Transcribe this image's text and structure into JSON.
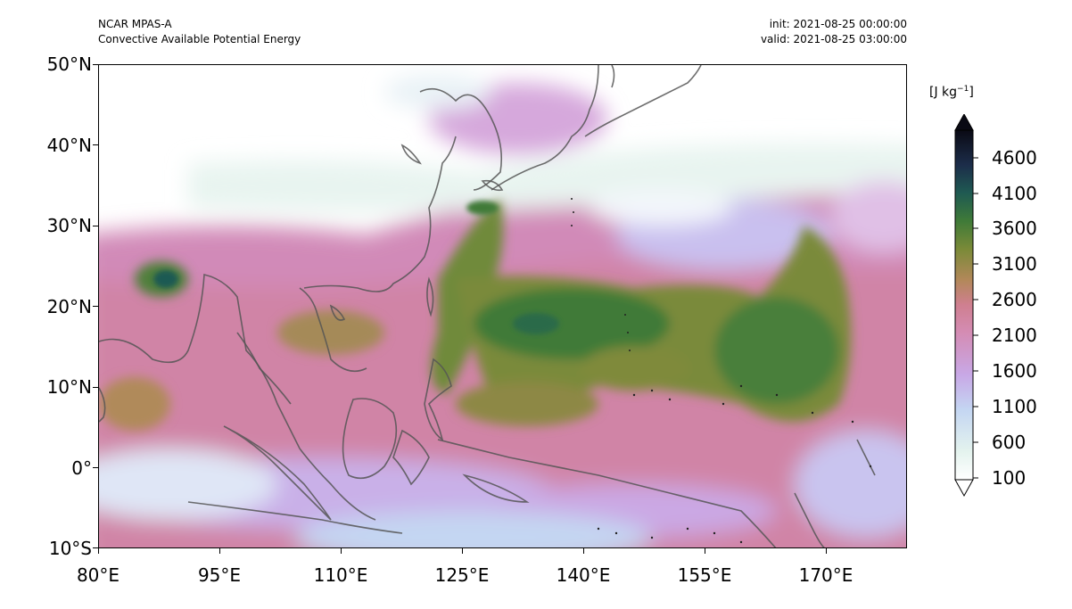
{
  "header": {
    "model": "NCAR MPAS-A",
    "field": "Convective Available Potential Energy",
    "init": "init: 2021-08-25 00:00:00",
    "valid": "valid: 2021-08-25 03:00:00"
  },
  "axes": {
    "lat_labels": [
      "50°N",
      "40°N",
      "30°N",
      "20°N",
      "10°N",
      "0°",
      "10°S"
    ],
    "lon_labels": [
      "80°E",
      "95°E",
      "110°E",
      "125°E",
      "140°E",
      "155°E",
      "170°E"
    ],
    "lat_range": [
      -10,
      50
    ],
    "lon_range": [
      80,
      180
    ]
  },
  "colorbar": {
    "units_text": "[J kg",
    "units_exp": "−1",
    "units_close": "]",
    "labels": [
      "4600",
      "4100",
      "3600",
      "3100",
      "2600",
      "2100",
      "1600",
      "1100",
      "600",
      "100"
    ],
    "extend": "both",
    "colors": [
      "#ffffff",
      "#e6f3ee",
      "#c4d6f2",
      "#c8a8e6",
      "#d48cb4",
      "#cf7f90",
      "#b3885a",
      "#7a8a38",
      "#3f7a38",
      "#1f5a52",
      "#1c2d4a",
      "#0a0a14"
    ]
  },
  "chart_data": {
    "type": "heatmap",
    "title": "Convective Available Potential Energy",
    "colormap": "cubehelix-like (white → lilac → pink → olive → green → teal → black)",
    "clabel": "[J kg−1]",
    "value_range": [
      100,
      4600
    ],
    "x_range": [
      "80°E",
      "180°E"
    ],
    "y_range": [
      "10°S",
      "50°N"
    ],
    "grid": false
  }
}
